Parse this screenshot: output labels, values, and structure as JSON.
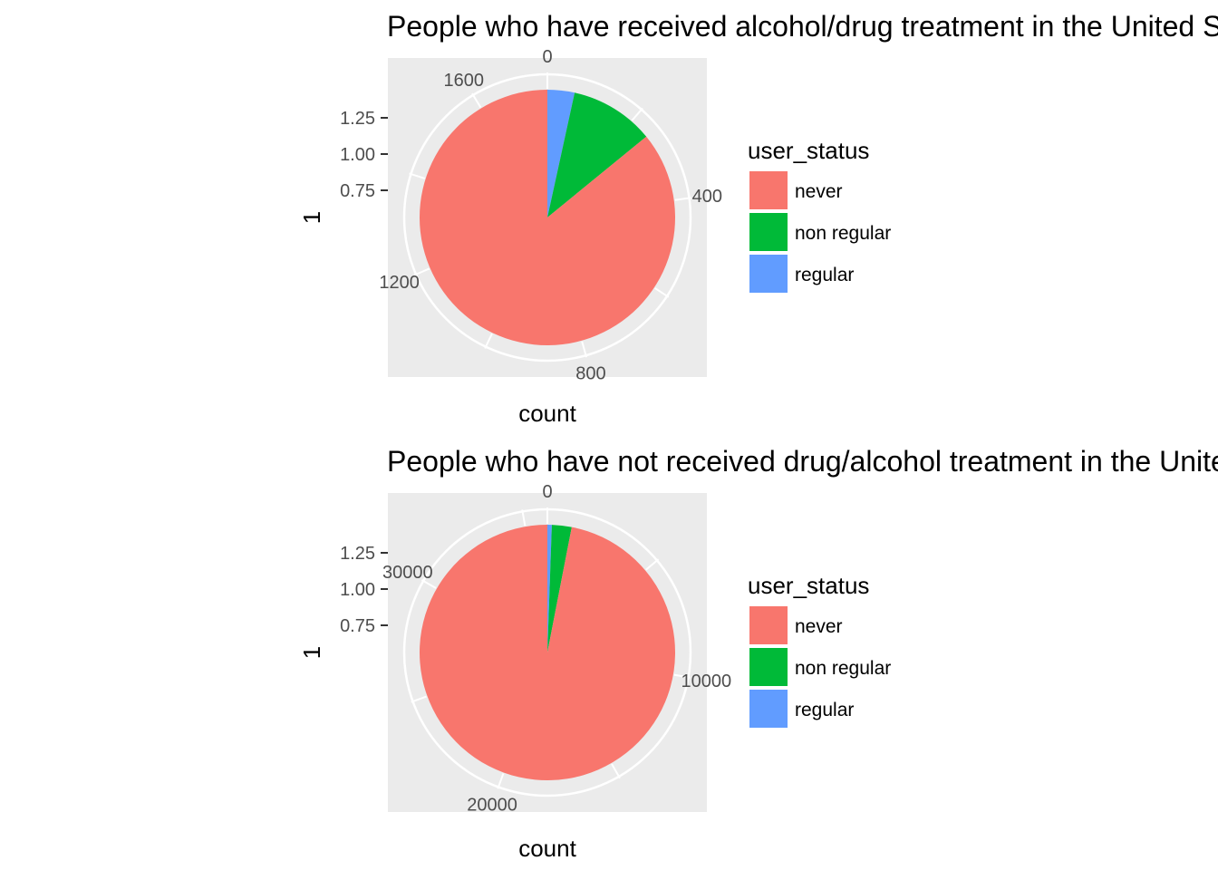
{
  "chart_data": [
    {
      "type": "pie",
      "title": "People who have received alcohol/drug treatment in the United States",
      "xlabel": "count",
      "ylabel": "1",
      "y_ticks": [
        "0.75",
        "1.00",
        "1.25"
      ],
      "theta_ticks": [
        {
          "label": "0",
          "value": 0
        },
        {
          "label": "400",
          "value": 400
        },
        {
          "label": "800",
          "value": 800
        },
        {
          "label": "1200",
          "value": 1200
        },
        {
          "label": "1600",
          "value": 1600
        }
      ],
      "total": 1752,
      "legend": {
        "title": "user_status",
        "position": "right"
      },
      "categories": [
        "never",
        "non regular",
        "regular"
      ],
      "values": [
        1505,
        187,
        60
      ],
      "colors": [
        "#F8766D",
        "#00BA38",
        "#619CFF"
      ],
      "grid": true
    },
    {
      "type": "pie",
      "title": "People who have not received drug/alcohol treatment in the United States",
      "xlabel": "count",
      "ylabel": "1",
      "y_ticks": [
        "0.75",
        "1.00",
        "1.25"
      ],
      "theta_ticks": [
        {
          "label": "0",
          "value": 0
        },
        {
          "label": "10000",
          "value": 10000
        },
        {
          "label": "20000",
          "value": 20000
        },
        {
          "label": "30000",
          "value": 30000
        }
      ],
      "total": 36000,
      "legend": {
        "title": "user_status",
        "position": "right"
      },
      "categories": [
        "never",
        "non regular",
        "regular"
      ],
      "values": [
        34900,
        900,
        200
      ],
      "colors": [
        "#F8766D",
        "#00BA38",
        "#619CFF"
      ],
      "grid": true
    }
  ]
}
